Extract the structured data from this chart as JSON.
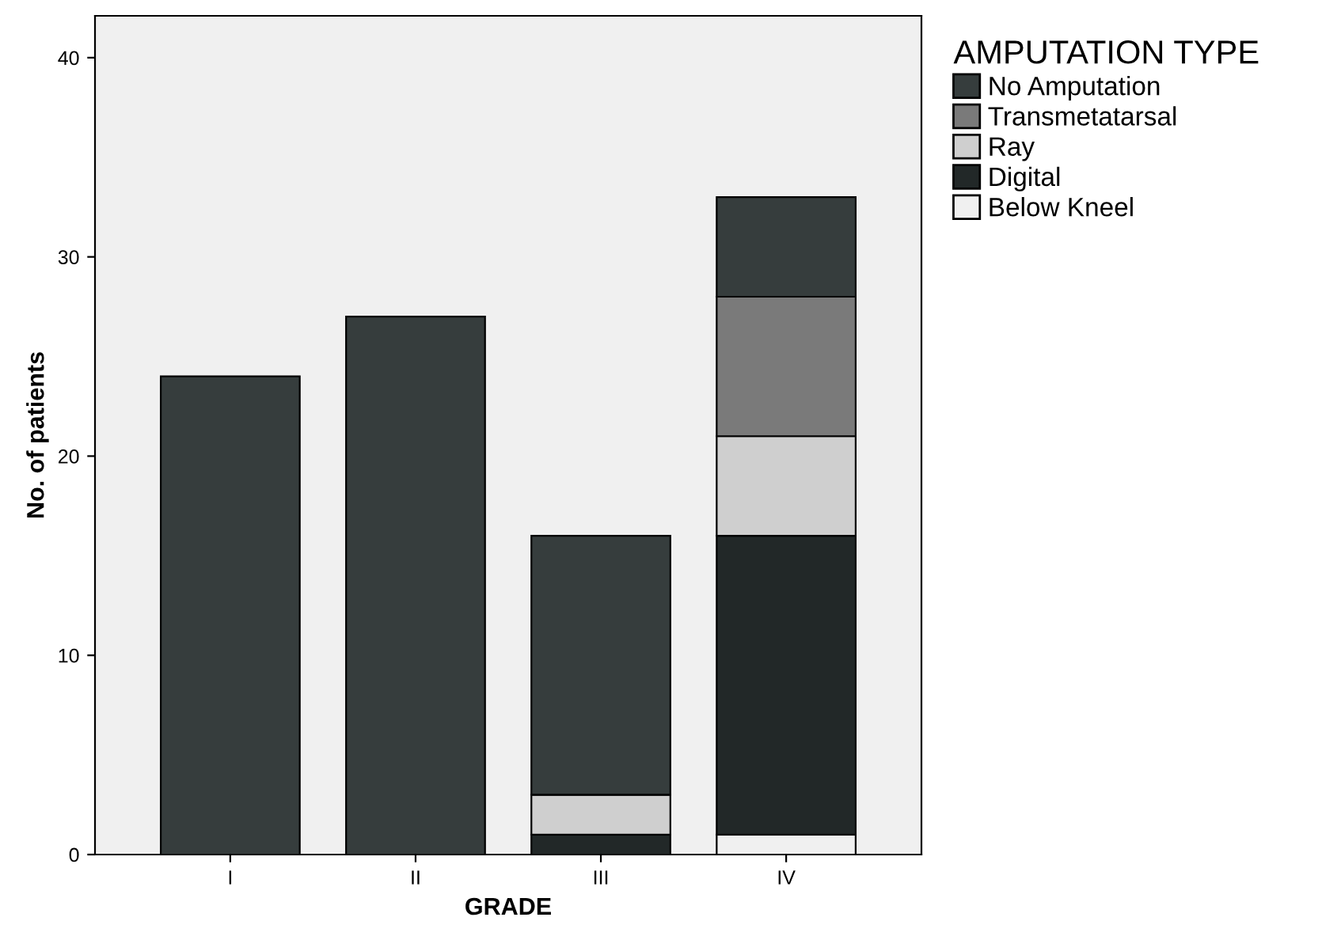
{
  "chart_data": {
    "type": "bar",
    "stacked": true,
    "xlabel": "GRADE",
    "ylabel": "No. of patients",
    "legend_title": "AMPUTATION TYPE",
    "legend": "right",
    "categories": [
      "I",
      "II",
      "III",
      "IV"
    ],
    "series": [
      {
        "name": "Below Kneel",
        "color": "#f0f0f0",
        "values": [
          0,
          0,
          0,
          1
        ]
      },
      {
        "name": "Digital",
        "color": "#222828",
        "values": [
          0,
          0,
          1,
          15
        ]
      },
      {
        "name": "Ray",
        "color": "#cfcfcf",
        "values": [
          0,
          0,
          2,
          5
        ]
      },
      {
        "name": "Transmetatarsal",
        "color": "#7a7a7a",
        "values": [
          0,
          0,
          0,
          7
        ]
      },
      {
        "name": "No Amputation",
        "color": "#363d3d",
        "values": [
          24,
          27,
          13,
          5
        ]
      }
    ],
    "ylim": [
      0,
      42.1
    ],
    "yticks": [
      0,
      10,
      20,
      30,
      40
    ],
    "grid": false
  }
}
